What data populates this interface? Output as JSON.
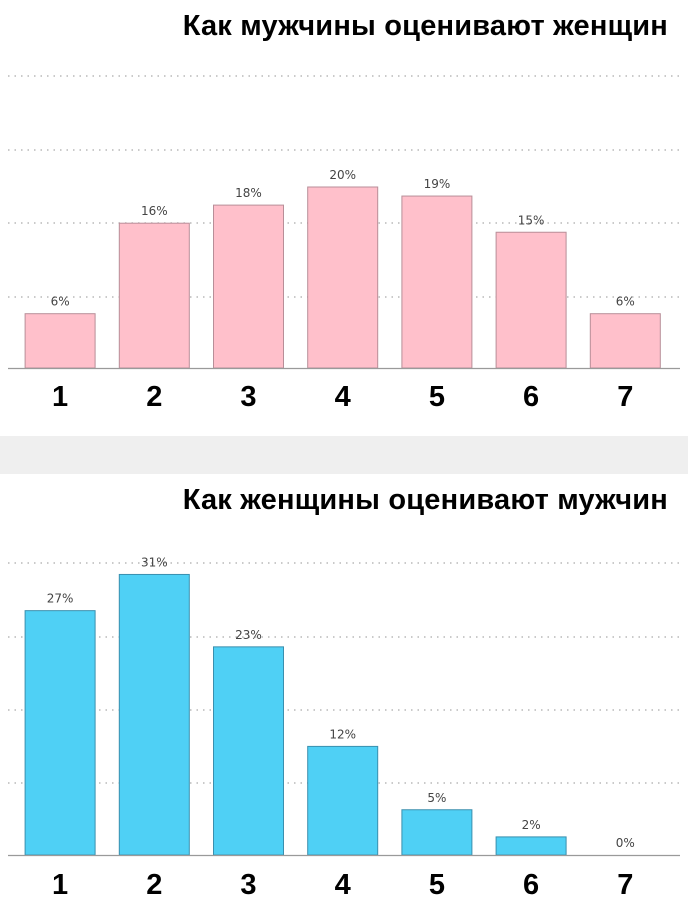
{
  "chart_data": [
    {
      "type": "bar",
      "title": "Как мужчины оценивают женщин",
      "categories": [
        "1",
        "2",
        "3",
        "4",
        "5",
        "6",
        "7"
      ],
      "values": [
        6,
        16,
        18,
        20,
        19,
        15,
        6
      ],
      "value_labels": [
        "6%",
        "16%",
        "18%",
        "20%",
        "19%",
        "15%",
        "6%"
      ],
      "ylim": [
        0,
        40
      ],
      "grid": true,
      "color": "#ffc0cb",
      "edge_color": "#b88e98"
    },
    {
      "type": "bar",
      "title": "Как женщины оценивают мужчин",
      "categories": [
        "1",
        "2",
        "3",
        "4",
        "5",
        "6",
        "7"
      ],
      "values": [
        27,
        31,
        23,
        12,
        5,
        2,
        0
      ],
      "value_labels": [
        "27%",
        "31%",
        "23%",
        "12%",
        "5%",
        "2%",
        "0%"
      ],
      "ylim": [
        0,
        40
      ],
      "grid": true,
      "color": "#4fd0f5",
      "edge_color": "#3a8fae"
    }
  ]
}
